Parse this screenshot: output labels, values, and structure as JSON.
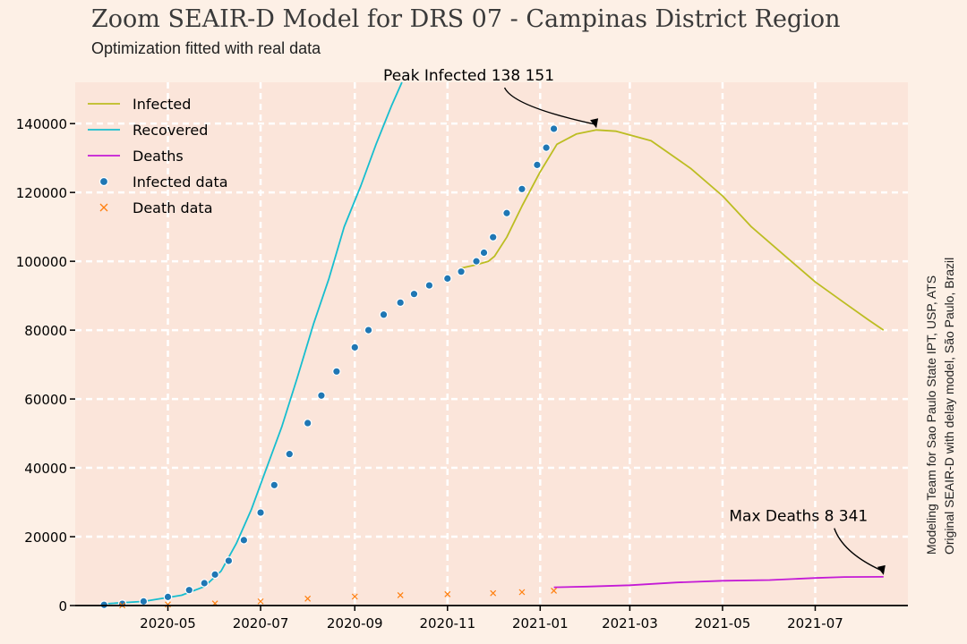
{
  "title": "Zoom SEAIR-D Model for DRS 07 - Campinas District Region",
  "subtitle": "Optimization fitted with real data",
  "credit": {
    "line1": "Modeling Team for Sao Paulo State IPT, USP, ATS",
    "line2": "Original SEAIR-D with delay model, São Paulo, Brazil"
  },
  "colors": {
    "background": "#fdf0e6",
    "plot_area": "#fbe5da",
    "infected": "#bcbd22",
    "recovered": "#17becf",
    "deaths": "#c41bd6",
    "infected_data": "#1f77b4",
    "death_data": "#ff7f0e"
  },
  "chart_data": {
    "type": "line",
    "x_type": "date",
    "xlim": [
      "2020-03-01",
      "2021-08-31"
    ],
    "ylim": [
      0,
      152000
    ],
    "grid": true,
    "legend_position": "top-left",
    "yticks": [
      0,
      20000,
      40000,
      60000,
      80000,
      100000,
      120000,
      140000
    ],
    "xticks": [
      {
        "date": "2020-05-01",
        "label": "2020-05"
      },
      {
        "date": "2020-07-01",
        "label": "2020-07"
      },
      {
        "date": "2020-09-01",
        "label": "2020-09"
      },
      {
        "date": "2020-11-01",
        "label": "2020-11"
      },
      {
        "date": "2021-01-01",
        "label": "2021-01"
      },
      {
        "date": "2021-03-01",
        "label": "2021-03"
      },
      {
        "date": "2021-05-01",
        "label": "2021-05"
      },
      {
        "date": "2021-07-01",
        "label": "2021-07"
      }
    ],
    "series": [
      {
        "name": "Infected",
        "kind": "line",
        "color": "#bcbd22",
        "x": [
          "2020-11-10",
          "2020-11-20",
          "2020-11-28",
          "2020-12-02",
          "2020-12-10",
          "2020-12-20",
          "2021-01-01",
          "2021-01-12",
          "2021-01-25",
          "2021-02-07",
          "2021-02-20",
          "2021-03-15",
          "2021-04-10",
          "2021-05-01",
          "2021-05-20",
          "2021-06-10",
          "2021-07-01",
          "2021-07-20",
          "2021-08-05",
          "2021-08-15"
        ],
        "y": [
          98000,
          99000,
          100000,
          101500,
          107000,
          116000,
          126000,
          134000,
          137000,
          138151,
          137800,
          135000,
          127000,
          119000,
          110000,
          102000,
          94000,
          88000,
          83000,
          80000
        ]
      },
      {
        "name": "Recovered",
        "kind": "line",
        "color": "#17becf",
        "x": [
          "2020-03-20",
          "2020-04-15",
          "2020-05-10",
          "2020-05-25",
          "2020-06-05",
          "2020-06-15",
          "2020-06-25",
          "2020-07-05",
          "2020-07-15",
          "2020-07-25",
          "2020-08-05",
          "2020-08-15",
          "2020-08-25",
          "2020-09-05",
          "2020-09-15",
          "2020-09-25",
          "2020-10-02"
        ],
        "y": [
          500,
          1200,
          3000,
          5500,
          10000,
          18000,
          28000,
          40000,
          52000,
          66000,
          82000,
          95000,
          110000,
          122000,
          134000,
          145000,
          152000
        ]
      },
      {
        "name": "Deaths",
        "kind": "line",
        "color": "#c41bd6",
        "x": [
          "2021-01-10",
          "2021-02-01",
          "2021-03-01",
          "2021-04-01",
          "2021-05-01",
          "2021-06-01",
          "2021-07-01",
          "2021-07-20",
          "2021-08-15"
        ],
        "y": [
          5300,
          5500,
          5900,
          6700,
          7200,
          7400,
          8000,
          8300,
          8341
        ]
      },
      {
        "name": "Infected data",
        "kind": "scatter",
        "marker": "circle",
        "color": "#1f77b4",
        "x": [
          "2020-03-20",
          "2020-04-01",
          "2020-04-15",
          "2020-05-01",
          "2020-05-15",
          "2020-05-25",
          "2020-06-01",
          "2020-06-10",
          "2020-06-20",
          "2020-07-01",
          "2020-07-10",
          "2020-07-20",
          "2020-08-01",
          "2020-08-10",
          "2020-08-20",
          "2020-09-01",
          "2020-09-10",
          "2020-09-20",
          "2020-10-01",
          "2020-10-10",
          "2020-10-20",
          "2020-11-01",
          "2020-11-10",
          "2020-11-20",
          "2020-11-25",
          "2020-12-01",
          "2020-12-10",
          "2020-12-20",
          "2020-12-30",
          "2021-01-05",
          "2021-01-10"
        ],
        "y": [
          200,
          500,
          1200,
          2500,
          4500,
          6500,
          9000,
          13000,
          19000,
          27000,
          35000,
          44000,
          53000,
          61000,
          68000,
          75000,
          80000,
          84500,
          88000,
          90500,
          93000,
          95000,
          97000,
          100000,
          102500,
          107000,
          114000,
          121000,
          128000,
          133000,
          138500
        ]
      },
      {
        "name": "Death data",
        "kind": "scatter",
        "marker": "x",
        "color": "#ff7f0e",
        "x": [
          "2020-04-01",
          "2020-05-01",
          "2020-06-01",
          "2020-07-01",
          "2020-08-01",
          "2020-09-01",
          "2020-10-01",
          "2020-11-01",
          "2020-12-01",
          "2020-12-20",
          "2021-01-10"
        ],
        "y": [
          50,
          300,
          600,
          1200,
          2000,
          2600,
          3000,
          3300,
          3600,
          3900,
          4300
        ]
      }
    ],
    "annotations": [
      {
        "text": "Peak Infected 138 151",
        "x": "2021-02-07",
        "y": 138151,
        "text_x": "2020-11-15",
        "text_y": 152000
      },
      {
        "text": "Max Deaths 8 341",
        "x": "2021-08-15",
        "y": 8341,
        "text_x": "2021-06-20",
        "text_y": 24000
      }
    ]
  }
}
